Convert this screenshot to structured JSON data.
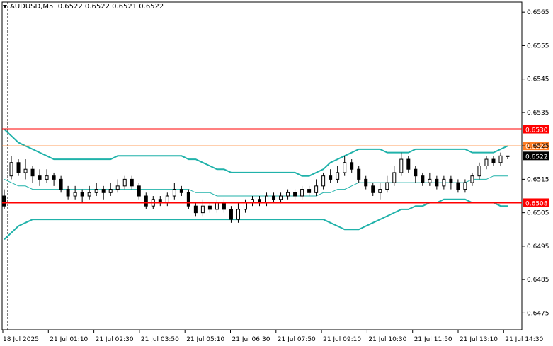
{
  "header": {
    "symbol": "AUDUSD,M5",
    "ohlc": "0.6522 0.6522 0.6521 0.6522"
  },
  "colors": {
    "background": "#ffffff",
    "bull_candle": "#ffffff",
    "bear_candle": "#000000",
    "bollinger": "#20b2aa",
    "support_resistance": "#ff0000",
    "level_orange": "#ff7f27",
    "current_price_bg": "#000000"
  },
  "chart_data": {
    "type": "candlestick",
    "symbol": "AUDUSD",
    "timeframe": "M5",
    "y_ticks": [
      "0.6565",
      "0.6555",
      "0.6545",
      "0.6535",
      "0.6525",
      "0.6515",
      "0.6505",
      "0.6495",
      "0.6485",
      "0.6475"
    ],
    "ylim": [
      0.647,
      0.6568
    ],
    "x_ticks": [
      "18 Jul 2025",
      "21 Jul 01:10",
      "21 Jul 02:30",
      "21 Jul 03:50",
      "21 Jul 05:10",
      "21 Jul 06:30",
      "21 Jul 07:50",
      "21 Jul 09:10",
      "21 Jul 10:30",
      "21 Jul 11:50",
      "21 Jul 13:10",
      "21 Jul 14:30"
    ],
    "horizontal_levels": [
      {
        "label": "0.6530",
        "value": 0.653,
        "color": "#ff0000"
      },
      {
        "label": "0.6525",
        "value": 0.6525,
        "color": "#ff7f27"
      },
      {
        "label": "0.6508",
        "value": 0.6508,
        "color": "#ff0000"
      }
    ],
    "current_price": {
      "label": "0.6522",
      "value": 0.6522
    },
    "bollinger_upper": [
      0.653,
      0.6528,
      0.6526,
      0.6525,
      0.6524,
      0.6523,
      0.6522,
      0.6521,
      0.6521,
      0.6521,
      0.6521,
      0.6521,
      0.6521,
      0.6521,
      0.6521,
      0.6521,
      0.6522,
      0.6522,
      0.6522,
      0.6522,
      0.6522,
      0.6522,
      0.6522,
      0.6522,
      0.6522,
      0.6522,
      0.6521,
      0.6521,
      0.652,
      0.6519,
      0.6518,
      0.6518,
      0.6517,
      0.6517,
      0.6517,
      0.6517,
      0.6517,
      0.6517,
      0.6517,
      0.6517,
      0.6517,
      0.6517,
      0.6516,
      0.6516,
      0.6517,
      0.6518,
      0.652,
      0.6521,
      0.6522,
      0.6523,
      0.6524,
      0.6524,
      0.6524,
      0.6524,
      0.6523,
      0.6523,
      0.6523,
      0.6523,
      0.6524,
      0.6524,
      0.6524,
      0.6524,
      0.6524,
      0.6524,
      0.6524,
      0.6524,
      0.6523,
      0.6523,
      0.6523,
      0.6523,
      0.6524,
      0.6525
    ],
    "bollinger_mid": [
      0.6515,
      0.6514,
      0.6513,
      0.6513,
      0.6512,
      0.6512,
      0.6512,
      0.6512,
      0.6512,
      0.6512,
      0.6512,
      0.6512,
      0.6512,
      0.6512,
      0.6512,
      0.6512,
      0.6512,
      0.6512,
      0.6512,
      0.6512,
      0.6512,
      0.6512,
      0.6512,
      0.6512,
      0.6512,
      0.6512,
      0.6512,
      0.6511,
      0.6511,
      0.6511,
      0.651,
      0.651,
      0.651,
      0.651,
      0.651,
      0.651,
      0.651,
      0.651,
      0.651,
      0.651,
      0.651,
      0.651,
      0.651,
      0.651,
      0.651,
      0.6511,
      0.6511,
      0.6512,
      0.6512,
      0.6513,
      0.6514,
      0.6514,
      0.6514,
      0.6514,
      0.6514,
      0.6514,
      0.6514,
      0.6514,
      0.6514,
      0.6514,
      0.6514,
      0.6514,
      0.6514,
      0.6514,
      0.6514,
      0.6514,
      0.6515,
      0.6515,
      0.6515,
      0.6516,
      0.6516,
      0.6516
    ],
    "bollinger_lower": [
      0.6497,
      0.6499,
      0.6501,
      0.6502,
      0.6503,
      0.6503,
      0.6503,
      0.6503,
      0.6503,
      0.6503,
      0.6503,
      0.6503,
      0.6503,
      0.6503,
      0.6503,
      0.6503,
      0.6503,
      0.6503,
      0.6503,
      0.6503,
      0.6503,
      0.6503,
      0.6503,
      0.6503,
      0.6503,
      0.6503,
      0.6503,
      0.6503,
      0.6503,
      0.6503,
      0.6503,
      0.6503,
      0.6503,
      0.6503,
      0.6503,
      0.6503,
      0.6503,
      0.6503,
      0.6503,
      0.6503,
      0.6503,
      0.6503,
      0.6503,
      0.6503,
      0.6503,
      0.6503,
      0.6502,
      0.6501,
      0.65,
      0.65,
      0.65,
      0.6501,
      0.6502,
      0.6503,
      0.6504,
      0.6505,
      0.6506,
      0.6506,
      0.6507,
      0.6507,
      0.6508,
      0.6508,
      0.6509,
      0.6509,
      0.6509,
      0.6509,
      0.6508,
      0.6508,
      0.6508,
      0.6508,
      0.6507,
      0.6507
    ],
    "candles": [
      [
        0.651,
        0.6507,
        0.6512,
        0.6506
      ],
      [
        0.6516,
        0.652,
        0.6522,
        0.6515
      ],
      [
        0.652,
        0.6517,
        0.6521,
        0.6516
      ],
      [
        0.6517,
        0.6518,
        0.6521,
        0.6515
      ],
      [
        0.6518,
        0.6516,
        0.6519,
        0.6514
      ],
      [
        0.6516,
        0.6515,
        0.6518,
        0.6513
      ],
      [
        0.6515,
        0.6516,
        0.6518,
        0.6514
      ],
      [
        0.6516,
        0.6515,
        0.6517,
        0.6513
      ],
      [
        0.6515,
        0.6512,
        0.6516,
        0.6511
      ],
      [
        0.6512,
        0.651,
        0.6513,
        0.6509
      ],
      [
        0.651,
        0.6511,
        0.6513,
        0.6509
      ],
      [
        0.6511,
        0.651,
        0.6512,
        0.6508
      ],
      [
        0.651,
        0.6511,
        0.6513,
        0.6509
      ],
      [
        0.6511,
        0.6512,
        0.6514,
        0.651
      ],
      [
        0.6512,
        0.6511,
        0.6513,
        0.6509
      ],
      [
        0.6511,
        0.6512,
        0.6514,
        0.651
      ],
      [
        0.6512,
        0.6513,
        0.6515,
        0.6511
      ],
      [
        0.6513,
        0.6515,
        0.6516,
        0.6512
      ],
      [
        0.6515,
        0.6513,
        0.6516,
        0.6512
      ],
      [
        0.6513,
        0.651,
        0.6514,
        0.6509
      ],
      [
        0.651,
        0.6507,
        0.6511,
        0.6506
      ],
      [
        0.6507,
        0.6509,
        0.651,
        0.6506
      ],
      [
        0.6509,
        0.6508,
        0.651,
        0.6507
      ],
      [
        0.6508,
        0.651,
        0.6511,
        0.6507
      ],
      [
        0.651,
        0.6512,
        0.6514,
        0.6509
      ],
      [
        0.6512,
        0.6511,
        0.6513,
        0.651
      ],
      [
        0.6511,
        0.6507,
        0.6512,
        0.6506
      ],
      [
        0.6507,
        0.6505,
        0.6508,
        0.6504
      ],
      [
        0.6505,
        0.6507,
        0.6509,
        0.6504
      ],
      [
        0.6507,
        0.6506,
        0.6508,
        0.6505
      ],
      [
        0.6506,
        0.6508,
        0.6509,
        0.6505
      ],
      [
        0.6508,
        0.6506,
        0.6509,
        0.6505
      ],
      [
        0.6506,
        0.6503,
        0.6507,
        0.6502
      ],
      [
        0.6503,
        0.6506,
        0.6508,
        0.6502
      ],
      [
        0.6506,
        0.6508,
        0.6509,
        0.6505
      ],
      [
        0.6508,
        0.6509,
        0.651,
        0.6507
      ],
      [
        0.6509,
        0.6508,
        0.651,
        0.6507
      ],
      [
        0.6508,
        0.651,
        0.6511,
        0.6507
      ],
      [
        0.651,
        0.6509,
        0.6511,
        0.6508
      ],
      [
        0.6509,
        0.651,
        0.6511,
        0.6508
      ],
      [
        0.651,
        0.6511,
        0.6512,
        0.6509
      ],
      [
        0.6511,
        0.651,
        0.6512,
        0.6509
      ],
      [
        0.651,
        0.6512,
        0.6513,
        0.6509
      ],
      [
        0.6512,
        0.6511,
        0.6513,
        0.651
      ],
      [
        0.6511,
        0.6513,
        0.6515,
        0.651
      ],
      [
        0.6513,
        0.6516,
        0.6517,
        0.6512
      ],
      [
        0.6516,
        0.6515,
        0.6518,
        0.6514
      ],
      [
        0.6515,
        0.6517,
        0.6519,
        0.6514
      ],
      [
        0.6517,
        0.652,
        0.6522,
        0.6516
      ],
      [
        0.652,
        0.6518,
        0.6521,
        0.6517
      ],
      [
        0.6518,
        0.6515,
        0.6519,
        0.6514
      ],
      [
        0.6515,
        0.6513,
        0.6516,
        0.6512
      ],
      [
        0.6513,
        0.6511,
        0.6514,
        0.651
      ],
      [
        0.6511,
        0.6512,
        0.6514,
        0.6509
      ],
      [
        0.6512,
        0.6514,
        0.6516,
        0.6511
      ],
      [
        0.6514,
        0.6517,
        0.6519,
        0.6513
      ],
      [
        0.6517,
        0.6521,
        0.6523,
        0.6516
      ],
      [
        0.6521,
        0.6518,
        0.6522,
        0.6517
      ],
      [
        0.6518,
        0.6516,
        0.6519,
        0.6514
      ],
      [
        0.6516,
        0.6514,
        0.6517,
        0.6513
      ],
      [
        0.6514,
        0.6515,
        0.6517,
        0.6513
      ],
      [
        0.6515,
        0.6513,
        0.6516,
        0.6512
      ],
      [
        0.6513,
        0.6515,
        0.6516,
        0.6512
      ],
      [
        0.6515,
        0.6514,
        0.6516,
        0.6512
      ],
      [
        0.6514,
        0.6512,
        0.6515,
        0.6511
      ],
      [
        0.6512,
        0.6514,
        0.6515,
        0.6511
      ],
      [
        0.6514,
        0.6516,
        0.6517,
        0.6513
      ],
      [
        0.6516,
        0.6519,
        0.652,
        0.6515
      ],
      [
        0.6519,
        0.6521,
        0.6522,
        0.6518
      ],
      [
        0.6521,
        0.652,
        0.6522,
        0.6519
      ],
      [
        0.652,
        0.6522,
        0.6523,
        0.6519
      ],
      [
        0.6522,
        0.6522,
        0.6522,
        0.6521
      ]
    ]
  }
}
